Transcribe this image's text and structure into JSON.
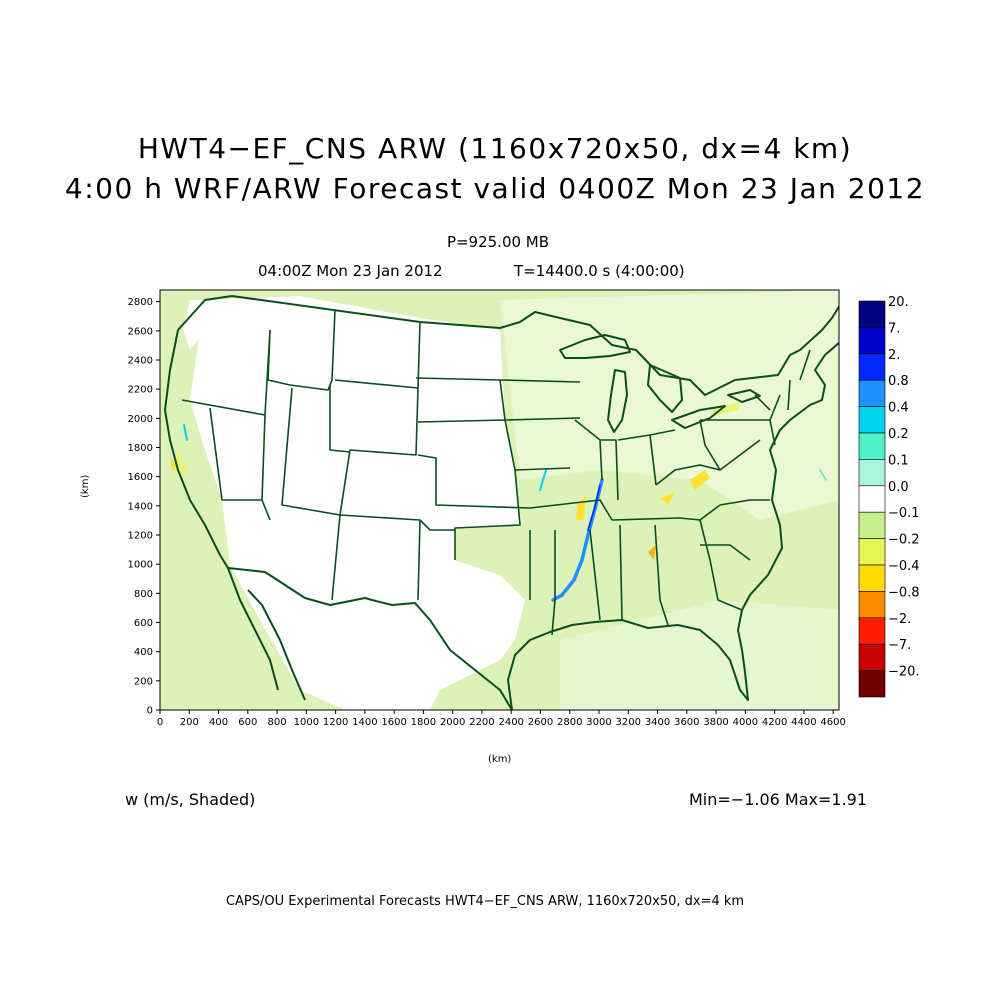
{
  "title_line1": "HWT4−EF_CNS ARW (1160x720x50, dx=4 km)",
  "title_line2": "4:00 h WRF/ARW Forecast valid 0400Z Mon 23 Jan 2012",
  "level": "P=925.00 MB",
  "valid_time": "04:00Z Mon 23 Jan 2012",
  "time_step": "T=14400.0 s (4:00:00)",
  "variable_label": "w (m/s, Shaded)",
  "min_max": "Min=−1.06 Max=1.91",
  "footer": "CAPS/OU Experimental Forecasts  HWT4−EF_CNS ARW, 1160x720x50, dx=4 km",
  "x_axis_label": "(km)",
  "y_axis_label": "(km)",
  "x_ticks": [
    "0",
    "200",
    "400",
    "600",
    "800",
    "1000",
    "1200",
    "1400",
    "1600",
    "1800",
    "2000",
    "2200",
    "2400",
    "2600",
    "2800",
    "3000",
    "3200",
    "3400",
    "3600",
    "3800",
    "4000",
    "4200",
    "4400",
    "4600"
  ],
  "y_ticks": [
    "0",
    "200",
    "400",
    "600",
    "800",
    "1000",
    "1200",
    "1400",
    "1600",
    "1800",
    "2000",
    "2200",
    "2400",
    "2600",
    "2800"
  ],
  "colorbar": [
    {
      "label": "20.",
      "color": "#000080"
    },
    {
      "label": "7.",
      "color": "#0000c8"
    },
    {
      "label": "2.",
      "color": "#0028ff"
    },
    {
      "label": "0.8",
      "color": "#1e90ff"
    },
    {
      "label": "0.4",
      "color": "#00d2f0"
    },
    {
      "label": "0.2",
      "color": "#50f0c8"
    },
    {
      "label": "0.1",
      "color": "#aaf5dc"
    },
    {
      "label": "0.0",
      "color": "#ffffff"
    },
    {
      "label": "−0.1",
      "color": "#c8f08c"
    },
    {
      "label": "−0.2",
      "color": "#e6f550"
    },
    {
      "label": "−0.4",
      "color": "#ffdc00"
    },
    {
      "label": "−0.8",
      "color": "#ff8c00"
    },
    {
      "label": "−2.",
      "color": "#ff1e00"
    },
    {
      "label": "−7.",
      "color": "#c80000"
    },
    {
      "label": "−20.",
      "color": "#6e0000"
    }
  ],
  "colors": {
    "land_shade": "#d8f0b0",
    "boundary": "#0a4d1e"
  }
}
